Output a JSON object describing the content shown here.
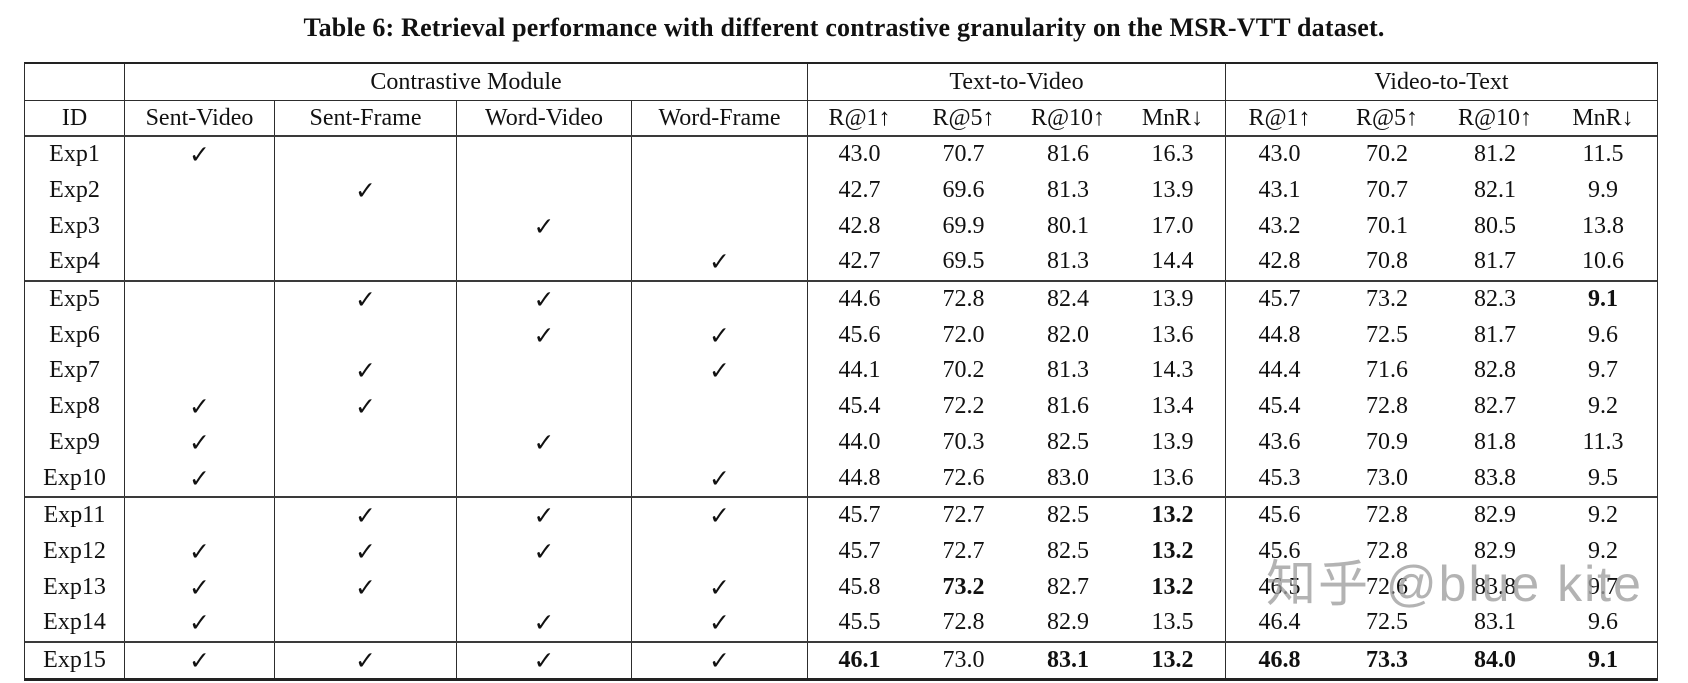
{
  "title": "Table 6: Retrieval performance with different contrastive granularity on the MSR-VTT dataset.",
  "watermark": "知乎 @blue kite",
  "table": {
    "group_headers": [
      "Contrastive Module",
      "Text-to-Video",
      "Video-to-Text"
    ],
    "id_header": "ID",
    "module_columns": [
      "Sent-Video",
      "Sent-Frame",
      "Word-Video",
      "Word-Frame"
    ],
    "metric_columns": [
      "R@1↑",
      "R@5↑",
      "R@10↑",
      "MnR↓"
    ],
    "check_glyph": "✓",
    "rows": [
      {
        "id": "Exp1",
        "checks": [
          1,
          0,
          0,
          0
        ],
        "t2v": [
          "43.0",
          "70.7",
          "81.6",
          "16.3"
        ],
        "t2v_bold": [
          0,
          0,
          0,
          0
        ],
        "v2t": [
          "43.0",
          "70.2",
          "81.2",
          "11.5"
        ],
        "v2t_bold": [
          0,
          0,
          0,
          0
        ],
        "group_start": false
      },
      {
        "id": "Exp2",
        "checks": [
          0,
          1,
          0,
          0
        ],
        "t2v": [
          "42.7",
          "69.6",
          "81.3",
          "13.9"
        ],
        "t2v_bold": [
          0,
          0,
          0,
          0
        ],
        "v2t": [
          "43.1",
          "70.7",
          "82.1",
          "9.9"
        ],
        "v2t_bold": [
          0,
          0,
          0,
          0
        ],
        "group_start": false
      },
      {
        "id": "Exp3",
        "checks": [
          0,
          0,
          1,
          0
        ],
        "t2v": [
          "42.8",
          "69.9",
          "80.1",
          "17.0"
        ],
        "t2v_bold": [
          0,
          0,
          0,
          0
        ],
        "v2t": [
          "43.2",
          "70.1",
          "80.5",
          "13.8"
        ],
        "v2t_bold": [
          0,
          0,
          0,
          0
        ],
        "group_start": false
      },
      {
        "id": "Exp4",
        "checks": [
          0,
          0,
          0,
          1
        ],
        "t2v": [
          "42.7",
          "69.5",
          "81.3",
          "14.4"
        ],
        "t2v_bold": [
          0,
          0,
          0,
          0
        ],
        "v2t": [
          "42.8",
          "70.8",
          "81.7",
          "10.6"
        ],
        "v2t_bold": [
          0,
          0,
          0,
          0
        ],
        "group_start": false
      },
      {
        "id": "Exp5",
        "checks": [
          0,
          1,
          1,
          0
        ],
        "t2v": [
          "44.6",
          "72.8",
          "82.4",
          "13.9"
        ],
        "t2v_bold": [
          0,
          0,
          0,
          0
        ],
        "v2t": [
          "45.7",
          "73.2",
          "82.3",
          "9.1"
        ],
        "v2t_bold": [
          0,
          0,
          0,
          1
        ],
        "group_start": true
      },
      {
        "id": "Exp6",
        "checks": [
          0,
          0,
          1,
          1
        ],
        "t2v": [
          "45.6",
          "72.0",
          "82.0",
          "13.6"
        ],
        "t2v_bold": [
          0,
          0,
          0,
          0
        ],
        "v2t": [
          "44.8",
          "72.5",
          "81.7",
          "9.6"
        ],
        "v2t_bold": [
          0,
          0,
          0,
          0
        ],
        "group_start": false
      },
      {
        "id": "Exp7",
        "checks": [
          0,
          1,
          0,
          1
        ],
        "t2v": [
          "44.1",
          "70.2",
          "81.3",
          "14.3"
        ],
        "t2v_bold": [
          0,
          0,
          0,
          0
        ],
        "v2t": [
          "44.4",
          "71.6",
          "82.8",
          "9.7"
        ],
        "v2t_bold": [
          0,
          0,
          0,
          0
        ],
        "group_start": false
      },
      {
        "id": "Exp8",
        "checks": [
          1,
          1,
          0,
          0
        ],
        "t2v": [
          "45.4",
          "72.2",
          "81.6",
          "13.4"
        ],
        "t2v_bold": [
          0,
          0,
          0,
          0
        ],
        "v2t": [
          "45.4",
          "72.8",
          "82.7",
          "9.2"
        ],
        "v2t_bold": [
          0,
          0,
          0,
          0
        ],
        "group_start": false
      },
      {
        "id": "Exp9",
        "checks": [
          1,
          0,
          1,
          0
        ],
        "t2v": [
          "44.0",
          "70.3",
          "82.5",
          "13.9"
        ],
        "t2v_bold": [
          0,
          0,
          0,
          0
        ],
        "v2t": [
          "43.6",
          "70.9",
          "81.8",
          "11.3"
        ],
        "v2t_bold": [
          0,
          0,
          0,
          0
        ],
        "group_start": false
      },
      {
        "id": "Exp10",
        "checks": [
          1,
          0,
          0,
          1
        ],
        "t2v": [
          "44.8",
          "72.6",
          "83.0",
          "13.6"
        ],
        "t2v_bold": [
          0,
          0,
          0,
          0
        ],
        "v2t": [
          "45.3",
          "73.0",
          "83.8",
          "9.5"
        ],
        "v2t_bold": [
          0,
          0,
          0,
          0
        ],
        "group_start": false
      },
      {
        "id": "Exp11",
        "checks": [
          0,
          1,
          1,
          1
        ],
        "t2v": [
          "45.7",
          "72.7",
          "82.5",
          "13.2"
        ],
        "t2v_bold": [
          0,
          0,
          0,
          1
        ],
        "v2t": [
          "45.6",
          "72.8",
          "82.9",
          "9.2"
        ],
        "v2t_bold": [
          0,
          0,
          0,
          0
        ],
        "group_start": true
      },
      {
        "id": "Exp12",
        "checks": [
          1,
          1,
          1,
          0
        ],
        "t2v": [
          "45.7",
          "72.7",
          "82.5",
          "13.2"
        ],
        "t2v_bold": [
          0,
          0,
          0,
          1
        ],
        "v2t": [
          "45.6",
          "72.8",
          "82.9",
          "9.2"
        ],
        "v2t_bold": [
          0,
          0,
          0,
          0
        ],
        "group_start": false
      },
      {
        "id": "Exp13",
        "checks": [
          1,
          1,
          0,
          1
        ],
        "t2v": [
          "45.8",
          "73.2",
          "82.7",
          "13.2"
        ],
        "t2v_bold": [
          0,
          1,
          0,
          1
        ],
        "v2t": [
          "46.5",
          "72.6",
          "83.8",
          "9.7"
        ],
        "v2t_bold": [
          0,
          0,
          0,
          0
        ],
        "group_start": false
      },
      {
        "id": "Exp14",
        "checks": [
          1,
          0,
          1,
          1
        ],
        "t2v": [
          "45.5",
          "72.8",
          "82.9",
          "13.5"
        ],
        "t2v_bold": [
          0,
          0,
          0,
          0
        ],
        "v2t": [
          "46.4",
          "72.5",
          "83.1",
          "9.6"
        ],
        "v2t_bold": [
          0,
          0,
          0,
          0
        ],
        "group_start": false
      },
      {
        "id": "Exp15",
        "checks": [
          1,
          1,
          1,
          1
        ],
        "t2v": [
          "46.1",
          "73.0",
          "83.1",
          "13.2"
        ],
        "t2v_bold": [
          1,
          0,
          1,
          1
        ],
        "v2t": [
          "46.8",
          "73.3",
          "84.0",
          "9.1"
        ],
        "v2t_bold": [
          1,
          1,
          1,
          1
        ],
        "group_start": true
      }
    ]
  }
}
